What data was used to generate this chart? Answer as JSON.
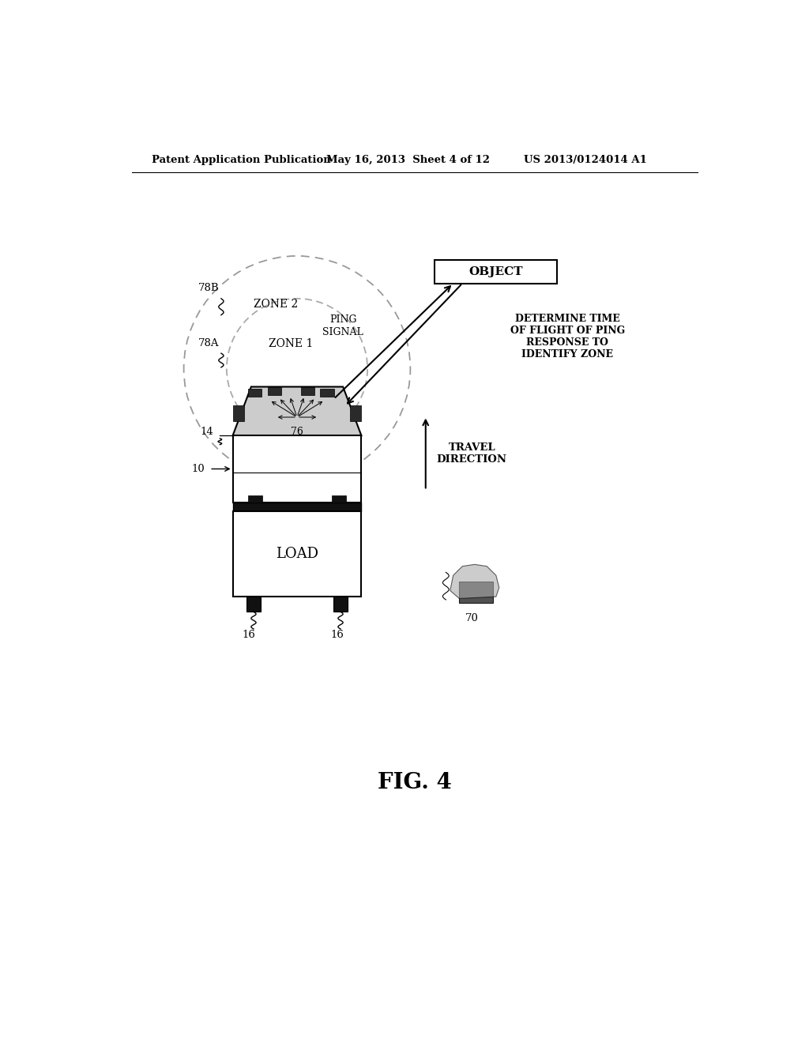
{
  "bg_color": "#ffffff",
  "header_left": "Patent Application Publication",
  "header_mid": "May 16, 2013  Sheet 4 of 12",
  "header_right": "US 2013/0124014 A1",
  "fig_label": "FIG. 4",
  "zone2_label": "ZONE 2",
  "zone1_label": "ZONE 1",
  "ping_signal_label": "PING\nSIGNAL",
  "determine_label": "DETERMINE TIME\nOF FLIGHT OF PING\nRESPONSE TO\nIDENTIFY ZONE",
  "object_label": "OBJECT",
  "travel_direction_label": "TRAVEL\nDIRECTION",
  "load_label": "LOAD",
  "label_78B": "78B",
  "label_78A": "78A",
  "label_14": "14",
  "label_10": "10",
  "label_16a": "16",
  "label_16b": "16",
  "label_76": "76",
  "label_70": "70"
}
